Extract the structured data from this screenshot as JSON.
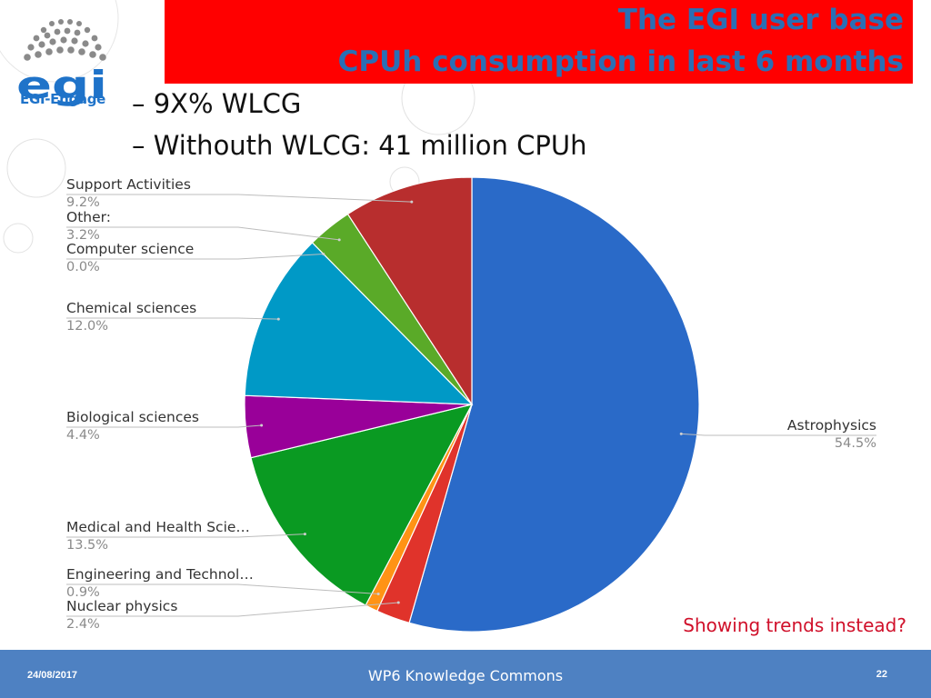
{
  "logo": {
    "name": "egi-engage-logo",
    "text": "EGI-Engage",
    "mark_text": "egi",
    "color": "#1f73c9"
  },
  "title": {
    "line1": "The EGI user base",
    "line2": "CPUh consumption in last 6 months"
  },
  "bullets": [
    "– 9X% WLCG",
    "– Withouth WLCG: 41 million CPUh"
  ],
  "note": "Showing trends instead?",
  "footer": {
    "date": "24/08/2017",
    "center": "WP6 Knowledge Commons",
    "page": "22"
  },
  "colors": {
    "title_band": "#ff0000",
    "title_text": "#2a6fb5",
    "footer": "#4e81c2",
    "note": "#d0102a"
  },
  "chart_data": {
    "type": "pie",
    "slices": [
      {
        "label": "Astrophysics",
        "value": 54.5,
        "pct_label": "54.5%",
        "color": "#2a6ac8"
      },
      {
        "label": "Nuclear physics",
        "value": 2.4,
        "pct_label": "2.4%",
        "color": "#e0332b"
      },
      {
        "label": "Engineering and Technol…",
        "value": 0.9,
        "pct_label": "0.9%",
        "color": "#ff9315"
      },
      {
        "label": "Medical and Health Scie…",
        "value": 13.5,
        "pct_label": "13.5%",
        "color": "#0a9a22"
      },
      {
        "label": "Biological sciences",
        "value": 4.4,
        "pct_label": "4.4%",
        "color": "#990099"
      },
      {
        "label": "Chemical sciences",
        "value": 12.0,
        "pct_label": "12.0%",
        "color": "#0099c6"
      },
      {
        "label": "Computer science",
        "value": 0.0,
        "pct_label": "0.0%",
        "color": "#dd4477"
      },
      {
        "label": "Other:",
        "value": 3.2,
        "pct_label": "3.2%",
        "color": "#5aaa28"
      },
      {
        "label": "Support Activities",
        "value": 9.2,
        "pct_label": "9.2%",
        "color": "#b82e2e"
      }
    ],
    "legend": "outside-labels"
  }
}
